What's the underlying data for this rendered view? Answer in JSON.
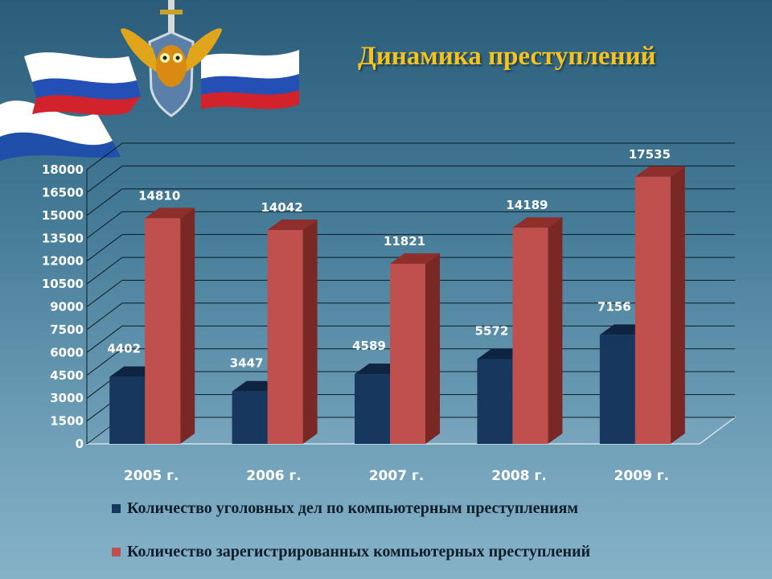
{
  "title": "Динамика преступлений",
  "colors": {
    "series1": "#17375e",
    "series2": "#c0504d",
    "title": "#f6c21d"
  },
  "emblem": {
    "icon": "owl-sword-shield-emblem-with-russian-flag-ribbon"
  },
  "chart_data": {
    "type": "bar",
    "title": "",
    "xlabel": "",
    "ylabel": "",
    "three_d": true,
    "categories": [
      "2005 г.",
      "2006 г.",
      "2007 г.",
      "2008 г.",
      "2009 г."
    ],
    "series": [
      {
        "name": "Количество уголовных дел по компьютерным преступлениям",
        "values": [
          4402,
          3447,
          4589,
          5572,
          7156
        ]
      },
      {
        "name": "Количество зарегистрированных компьютерных преступлений",
        "values": [
          14810,
          14042,
          11821,
          14189,
          17535
        ]
      }
    ],
    "ylim": [
      0,
      18000
    ],
    "yticks": [
      0,
      1500,
      3000,
      4500,
      6000,
      7500,
      9000,
      10500,
      12000,
      13500,
      15000,
      16500,
      18000
    ],
    "grid": true,
    "legend": "bottom"
  }
}
